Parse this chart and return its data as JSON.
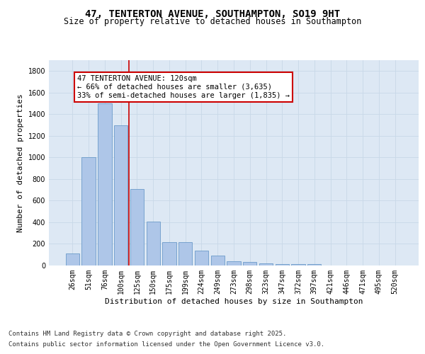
{
  "title_line1": "47, TENTERTON AVENUE, SOUTHAMPTON, SO19 9HT",
  "title_line2": "Size of property relative to detached houses in Southampton",
  "xlabel": "Distribution of detached houses by size in Southampton",
  "ylabel": "Number of detached properties",
  "categories": [
    "26sqm",
    "51sqm",
    "76sqm",
    "100sqm",
    "125sqm",
    "150sqm",
    "175sqm",
    "199sqm",
    "224sqm",
    "249sqm",
    "273sqm",
    "298sqm",
    "323sqm",
    "347sqm",
    "372sqm",
    "397sqm",
    "421sqm",
    "446sqm",
    "471sqm",
    "495sqm",
    "520sqm"
  ],
  "values": [
    110,
    1005,
    1500,
    1295,
    710,
    405,
    215,
    215,
    135,
    90,
    40,
    30,
    20,
    10,
    10,
    15,
    0,
    0,
    0,
    0,
    0
  ],
  "bar_color": "#aec6e8",
  "bar_edge_color": "#5a8fc2",
  "annotation_text_line1": "47 TENTERTON AVENUE: 120sqm",
  "annotation_text_line2": "← 66% of detached houses are smaller (3,635)",
  "annotation_text_line3": "33% of semi-detached houses are larger (1,835) →",
  "annotation_box_color": "#ffffff",
  "annotation_box_edge_color": "#cc0000",
  "red_line_color": "#cc0000",
  "red_line_x": 3.5,
  "ylim": [
    0,
    1900
  ],
  "yticks": [
    0,
    200,
    400,
    600,
    800,
    1000,
    1200,
    1400,
    1600,
    1800
  ],
  "grid_color": "#c8d8e8",
  "background_color": "#dde8f4",
  "footer_line1": "Contains HM Land Registry data © Crown copyright and database right 2025.",
  "footer_line2": "Contains public sector information licensed under the Open Government Licence v3.0.",
  "title_fontsize": 10,
  "subtitle_fontsize": 8.5,
  "axis_label_fontsize": 8,
  "tick_fontsize": 7,
  "annotation_fontsize": 7.5,
  "footer_fontsize": 6.5
}
